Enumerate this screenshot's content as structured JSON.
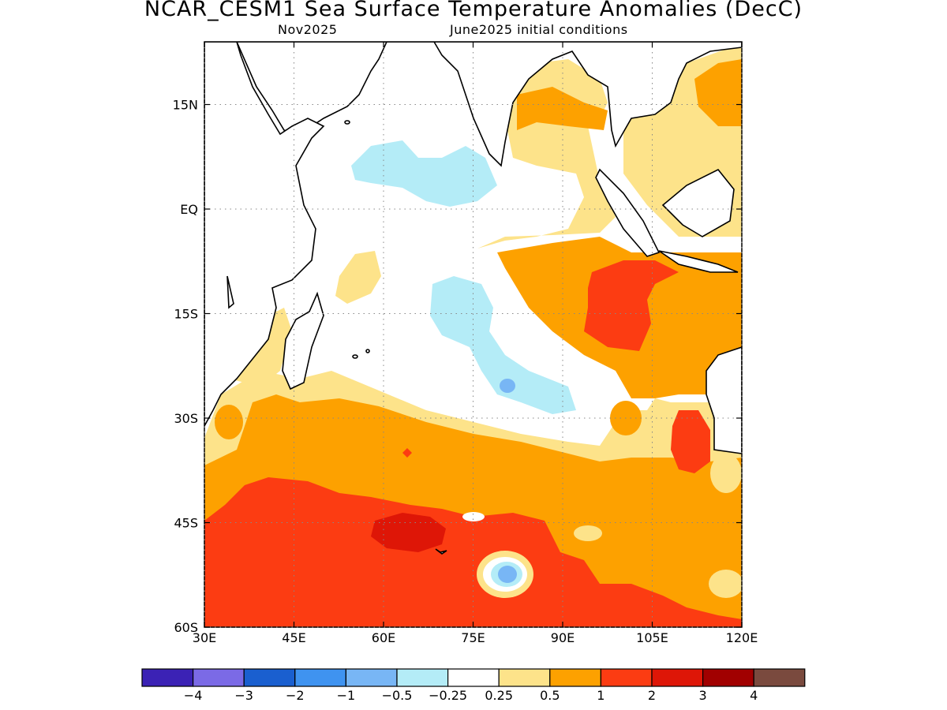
{
  "title": "NCAR_CESM1 Sea Surface Temperature Anomalies (DecC)",
  "subtitle_left": "Nov2025",
  "subtitle_right": "June2025 initial conditions",
  "map": {
    "lon_range": [
      30,
      120
    ],
    "lat_range": [
      -60,
      24
    ],
    "lon_ticks": [
      {
        "value": 30,
        "label": "30E"
      },
      {
        "value": 45,
        "label": "45E"
      },
      {
        "value": 60,
        "label": "60E"
      },
      {
        "value": 75,
        "label": "75E"
      },
      {
        "value": 90,
        "label": "90E"
      },
      {
        "value": 105,
        "label": "105E"
      },
      {
        "value": 120,
        "label": "120E"
      }
    ],
    "lat_ticks": [
      {
        "value": 15,
        "label": "15N"
      },
      {
        "value": 0,
        "label": "EQ"
      },
      {
        "value": -15,
        "label": "15S"
      },
      {
        "value": -30,
        "label": "30S"
      },
      {
        "value": -45,
        "label": "45S"
      },
      {
        "value": -60,
        "label": "60S"
      }
    ]
  },
  "legend": {
    "colors": [
      "#3b22b5",
      "#7b6ae6",
      "#1a5fcf",
      "#3f93f0",
      "#78b6f5",
      "#b4ecf7",
      "#ffffff",
      "#fde38a",
      "#fda100",
      "#fc3c12",
      "#de1607",
      "#a10000",
      "#7a4a3e"
    ],
    "labels": [
      "−4",
      "−3",
      "−2",
      "−1",
      "−0.5",
      "−0.25",
      "0.25",
      "0.5",
      "1",
      "2",
      "3",
      "4"
    ]
  }
}
